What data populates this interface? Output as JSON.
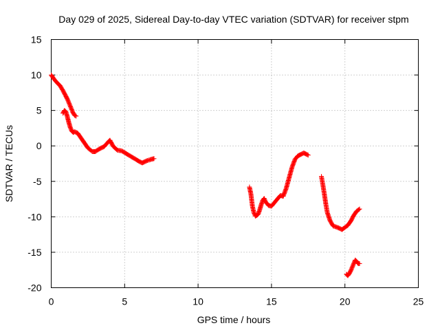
{
  "chart_data": {
    "type": "scatter",
    "title": "Day 029 of 2025, Sidereal Day-to-day VTEC variation (SDTVAR) for receiver stpm",
    "xlabel": "GPS time / hours",
    "ylabel": "SDTVAR / TECUs",
    "xlim": [
      0,
      25
    ],
    "ylim": [
      -20,
      15
    ],
    "xticks": [
      0,
      5,
      10,
      15,
      20,
      25
    ],
    "yticks": [
      -20,
      -15,
      -10,
      -5,
      0,
      5,
      10,
      15
    ],
    "xtick_labels": [
      "0",
      "5",
      "10",
      "15",
      "20",
      "25"
    ],
    "ytick_labels": [
      "-20",
      "-15",
      "-10",
      "-5",
      "0",
      "5",
      "10",
      "15"
    ],
    "grid": true,
    "marker": "plus",
    "color": "#ff0000",
    "series": [
      {
        "name": "segment-1",
        "x": [
          0.0,
          0.2,
          0.4,
          0.6,
          0.8,
          1.0,
          1.1,
          1.2,
          1.3,
          1.4,
          1.5,
          1.6,
          1.7
        ],
        "y": [
          10.0,
          9.4,
          8.9,
          8.5,
          7.8,
          7.0,
          6.6,
          6.1,
          5.6,
          5.1,
          4.6,
          4.3,
          4.2
        ]
      },
      {
        "name": "segment-2",
        "x": [
          0.8,
          0.9,
          1.0,
          1.1,
          1.2,
          1.3,
          1.4,
          1.5,
          1.6,
          1.8,
          2.0,
          2.2,
          2.5,
          2.8,
          3.0,
          3.3,
          3.6,
          3.9,
          4.0,
          4.2,
          4.5,
          4.8,
          5.2,
          5.6,
          6.0,
          6.2,
          6.5,
          6.8,
          7.0
        ],
        "y": [
          4.6,
          5.0,
          4.8,
          4.1,
          3.3,
          2.6,
          2.1,
          1.9,
          2.0,
          1.8,
          1.2,
          0.6,
          -0.3,
          -0.8,
          -0.8,
          -0.4,
          -0.1,
          0.6,
          0.8,
          0.0,
          -0.6,
          -0.7,
          -1.2,
          -1.7,
          -2.2,
          -2.4,
          -2.1,
          -1.9,
          -1.8
        ]
      },
      {
        "name": "segment-3",
        "x": [
          13.5,
          13.6,
          13.7,
          13.8,
          13.9,
          14.0,
          14.1,
          14.2,
          14.3,
          14.4,
          14.5,
          14.6,
          14.8,
          15.0,
          15.2,
          15.4,
          15.6,
          15.8,
          16.0,
          16.2,
          16.4,
          16.6,
          16.8,
          17.0,
          17.2,
          17.4,
          17.5
        ],
        "y": [
          -5.8,
          -6.8,
          -8.5,
          -9.4,
          -9.9,
          -9.8,
          -9.6,
          -9.0,
          -8.3,
          -7.7,
          -7.4,
          -7.9,
          -8.4,
          -8.5,
          -8.0,
          -7.5,
          -7.0,
          -7.1,
          -6.0,
          -4.5,
          -3.0,
          -1.9,
          -1.4,
          -1.2,
          -1.0,
          -1.2,
          -1.3
        ]
      },
      {
        "name": "segment-4",
        "x": [
          18.4,
          18.5,
          18.6,
          18.7,
          18.8,
          19.0,
          19.2,
          19.5,
          19.8,
          20.0,
          20.2,
          20.4,
          20.6,
          20.8,
          21.0
        ],
        "y": [
          -4.3,
          -5.5,
          -6.8,
          -8.2,
          -9.4,
          -10.6,
          -11.3,
          -11.5,
          -11.8,
          -11.5,
          -11.2,
          -10.6,
          -9.8,
          -9.2,
          -8.9
        ]
      },
      {
        "name": "segment-5",
        "x": [
          20.1,
          20.2,
          20.3,
          20.4,
          20.5,
          20.6,
          20.7,
          20.8,
          20.9,
          21.0
        ],
        "y": [
          -18.1,
          -18.3,
          -18.0,
          -17.6,
          -17.1,
          -16.6,
          -16.1,
          -16.3,
          -16.6,
          -16.6
        ]
      }
    ]
  }
}
